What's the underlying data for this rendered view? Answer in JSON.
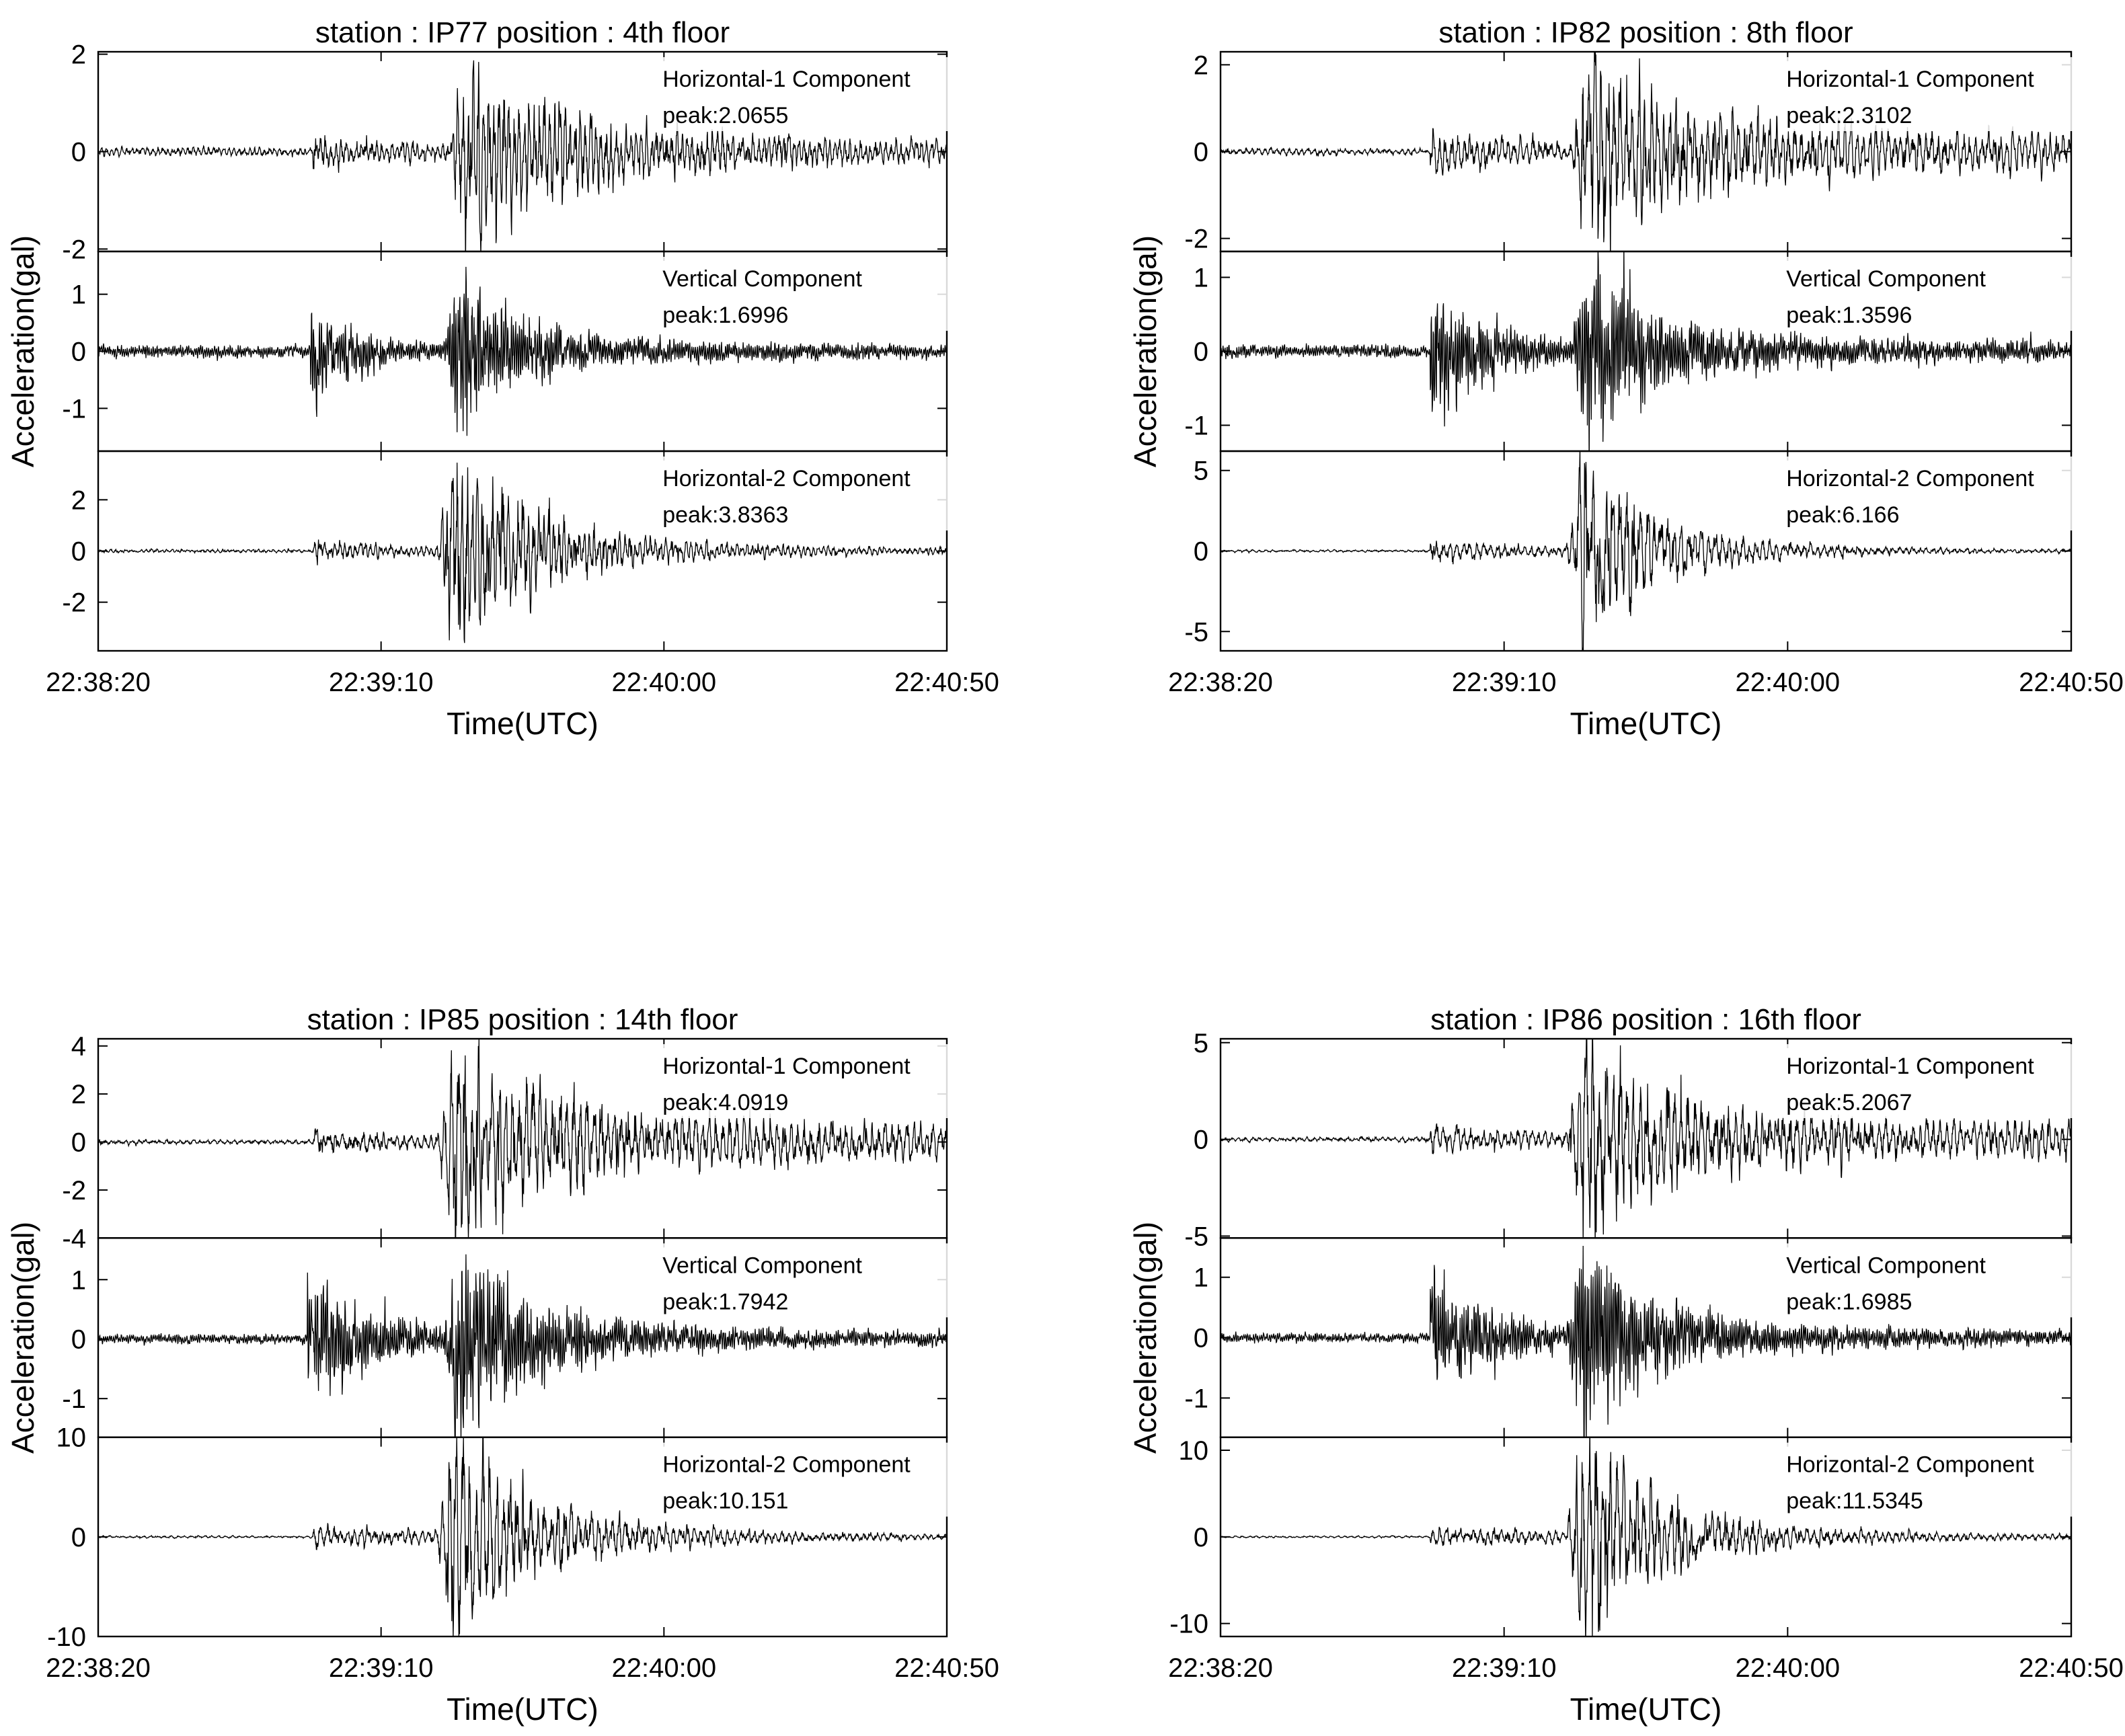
{
  "figure": {
    "xlabel": "Time(UTC)",
    "ylabel": "Acceleration(gal)",
    "x_tick_labels": [
      "22:38:20",
      "22:39:10",
      "22:40:00",
      "22:40:50"
    ],
    "line_color": "#000000",
    "background": "#ffffff"
  },
  "chart_data": [
    {
      "type": "line",
      "title": "station : IP77   position : 4th floor",
      "xlabel": "Time(UTC)",
      "ylabel": "Acceleration(gal)",
      "xlim": [
        "22:38:20",
        "22:40:50"
      ],
      "x_ticks": [
        "22:38:20",
        "22:39:10",
        "22:40:00",
        "22:40:50"
      ],
      "series": [
        {
          "component": "Horizontal-1 Component",
          "peak": "peak:2.0655",
          "ylim": [
            -2.05,
            2.05
          ],
          "y_ticks": [
            -2,
            0,
            2
          ],
          "y_tick_labels": [
            "-2",
            "0",
            "2"
          ],
          "envelope": {
            "noise": 0.09,
            "p_onset_s": 38,
            "p_level": 0.28,
            "p_decay_s": 20,
            "s_onset_s": 62,
            "s_peak": 1.45,
            "s_decay_s": 16,
            "coda": 0.5,
            "coda_decay_s": 70,
            "period_s": 0.9
          }
        },
        {
          "component": "Vertical Component",
          "peak": "peak:1.6996",
          "ylim": [
            -1.75,
            1.75
          ],
          "y_ticks": [
            -1,
            0,
            1
          ],
          "y_tick_labels": [
            "-1",
            "0",
            "1"
          ],
          "envelope": {
            "noise": 0.11,
            "p_onset_s": 37.5,
            "p_level": 0.9,
            "p_decay_s": 8,
            "s_onset_s": 61,
            "s_peak": 1.3,
            "s_decay_s": 10,
            "coda": 0.18,
            "coda_decay_s": 50,
            "period_s": 0.35
          }
        },
        {
          "component": "Horizontal-2 Component",
          "peak": "peak:3.8363",
          "ylim": [
            -3.9,
            3.9
          ],
          "y_ticks": [
            -2,
            0,
            2
          ],
          "y_tick_labels": [
            "-2",
            "0",
            "2"
          ],
          "envelope": {
            "noise": 0.07,
            "p_onset_s": 38,
            "p_level": 0.35,
            "p_decay_s": 25,
            "s_onset_s": 60,
            "s_peak": 3.4,
            "s_decay_s": 12,
            "coda": 0.9,
            "coda_decay_s": 35,
            "period_s": 0.9
          }
        }
      ]
    },
    {
      "type": "line",
      "title": "station : IP82   position : 8th floor",
      "xlabel": "Time(UTC)",
      "ylabel": "Acceleration(gal)",
      "xlim": [
        "22:38:20",
        "22:40:50"
      ],
      "x_ticks": [
        "22:38:20",
        "22:39:10",
        "22:40:00",
        "22:40:50"
      ],
      "series": [
        {
          "component": "Horizontal-1 Component",
          "peak": "peak:2.3102",
          "ylim": [
            -2.3,
            2.3
          ],
          "y_ticks": [
            -2,
            0,
            2
          ],
          "y_tick_labels": [
            "-2",
            "0",
            "2"
          ],
          "envelope": {
            "noise": 0.08,
            "p_onset_s": 37,
            "p_level": 0.45,
            "p_decay_s": 25,
            "s_onset_s": 62,
            "s_peak": 1.9,
            "s_decay_s": 16,
            "coda": 0.55,
            "coda_decay_s": 200,
            "period_s": 1.1
          }
        },
        {
          "component": "Vertical Component",
          "peak": "peak:1.3596",
          "ylim": [
            -1.35,
            1.35
          ],
          "y_ticks": [
            -1,
            0,
            1
          ],
          "y_tick_labels": [
            "-1",
            "0",
            "1"
          ],
          "envelope": {
            "noise": 0.09,
            "p_onset_s": 37,
            "p_level": 1.0,
            "p_decay_s": 10,
            "s_onset_s": 62,
            "s_peak": 1.2,
            "s_decay_s": 10,
            "coda": 0.22,
            "coda_decay_s": 60,
            "period_s": 0.35
          }
        },
        {
          "component": "Horizontal-2 Component",
          "peak": "peak:6.166",
          "ylim": [
            -6.2,
            6.2
          ],
          "y_ticks": [
            -5,
            0,
            5
          ],
          "y_tick_labels": [
            "-5",
            "0",
            "5"
          ],
          "envelope": {
            "noise": 0.08,
            "p_onset_s": 37,
            "p_level": 0.6,
            "p_decay_s": 30,
            "s_onset_s": 61,
            "s_peak": 5.3,
            "s_decay_s": 10,
            "coda": 1.8,
            "coda_decay_s": 22,
            "period_s": 1.2
          }
        }
      ]
    },
    {
      "type": "line",
      "title": "station : IP85   position : 14th floor",
      "xlabel": "Time(UTC)",
      "ylabel": "Acceleration(gal)",
      "xlim": [
        "22:38:20",
        "22:40:50"
      ],
      "x_ticks": [
        "22:38:20",
        "22:39:10",
        "22:40:00",
        "22:40:50"
      ],
      "series": [
        {
          "component": "Horizontal-1 Component",
          "peak": "peak:4.0919",
          "ylim": [
            -4.0,
            4.3
          ],
          "y_ticks": [
            -4,
            -2,
            0,
            2,
            4
          ],
          "y_tick_labels": [
            "-4",
            "-2",
            "0",
            "2",
            "4"
          ],
          "envelope": {
            "noise": 0.1,
            "p_onset_s": 38,
            "p_level": 0.5,
            "p_decay_s": 25,
            "s_onset_s": 60,
            "s_peak": 3.7,
            "s_decay_s": 14,
            "coda": 1.1,
            "coda_decay_s": 200,
            "period_s": 1.2
          }
        },
        {
          "component": "Vertical Component",
          "peak": "peak:1.7942",
          "ylim": [
            -1.65,
            1.7
          ],
          "y_ticks": [
            -1,
            0,
            1
          ],
          "y_tick_labels": [
            "-1",
            "0",
            "1"
          ],
          "envelope": {
            "noise": 0.08,
            "p_onset_s": 37,
            "p_level": 1.2,
            "p_decay_s": 12,
            "s_onset_s": 61,
            "s_peak": 1.35,
            "s_decay_s": 12,
            "coda": 0.25,
            "coda_decay_s": 60,
            "period_s": 0.35
          }
        },
        {
          "component": "Horizontal-2 Component",
          "peak": "peak:10.151",
          "ylim": [
            -10,
            10
          ],
          "y_ticks": [
            -10,
            0,
            10
          ],
          "y_tick_labels": [
            "-10",
            "0",
            "10"
          ],
          "envelope": {
            "noise": 0.12,
            "p_onset_s": 38,
            "p_level": 1.1,
            "p_decay_s": 40,
            "s_onset_s": 60,
            "s_peak": 9.4,
            "s_decay_s": 11,
            "coda": 2.6,
            "coda_decay_s": 30,
            "period_s": 1.2
          }
        }
      ]
    },
    {
      "type": "line",
      "title": "station : IP86   position : 16th floor",
      "xlabel": "Time(UTC)",
      "ylabel": "Acceleration(gal)",
      "xlim": [
        "22:38:20",
        "22:40:50"
      ],
      "x_ticks": [
        "22:38:20",
        "22:39:10",
        "22:40:00",
        "22:40:50"
      ],
      "series": [
        {
          "component": "Horizontal-1 Component",
          "peak": "peak:5.2067",
          "ylim": [
            -5.1,
            5.2
          ],
          "y_ticks": [
            -5,
            0,
            5
          ],
          "y_tick_labels": [
            "-5",
            "0",
            "5"
          ],
          "envelope": {
            "noise": 0.12,
            "p_onset_s": 37,
            "p_level": 0.7,
            "p_decay_s": 25,
            "s_onset_s": 61,
            "s_peak": 4.5,
            "s_decay_s": 14,
            "coda": 1.3,
            "coda_decay_s": 200,
            "period_s": 1.2
          }
        },
        {
          "component": "Vertical Component",
          "peak": "peak:1.6985",
          "ylim": [
            -1.65,
            1.65
          ],
          "y_ticks": [
            -1,
            0,
            1
          ],
          "y_tick_labels": [
            "-1",
            "0",
            "1"
          ],
          "envelope": {
            "noise": 0.08,
            "p_onset_s": 37,
            "p_level": 1.1,
            "p_decay_s": 12,
            "s_onset_s": 61,
            "s_peak": 1.3,
            "s_decay_s": 12,
            "coda": 0.25,
            "coda_decay_s": 60,
            "period_s": 0.35
          }
        },
        {
          "component": "Horizontal-2 Component",
          "peak": "peak:11.5345",
          "ylim": [
            -11.5,
            11.5
          ],
          "y_ticks": [
            -10,
            0,
            10
          ],
          "y_tick_labels": [
            "-10",
            "0",
            "10"
          ],
          "envelope": {
            "noise": 0.12,
            "p_onset_s": 37,
            "p_level": 1.2,
            "p_decay_s": 40,
            "s_onset_s": 61,
            "s_peak": 10.5,
            "s_decay_s": 11,
            "coda": 2.8,
            "coda_decay_s": 30,
            "period_s": 1.2
          }
        }
      ]
    }
  ]
}
